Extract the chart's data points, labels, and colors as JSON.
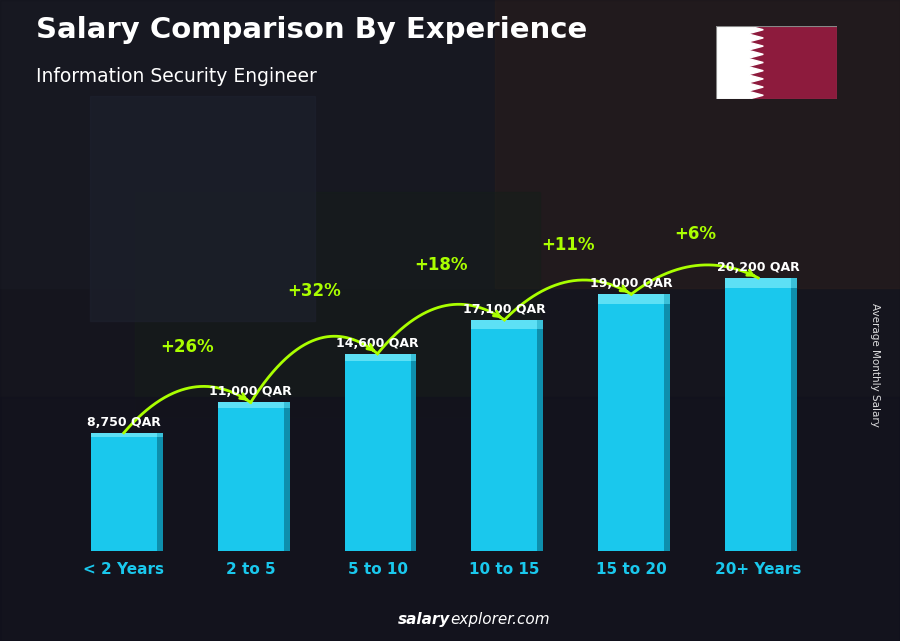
{
  "title": "Salary Comparison By Experience",
  "subtitle": "Information Security Engineer",
  "categories": [
    "< 2 Years",
    "2 to 5",
    "5 to 10",
    "10 to 15",
    "15 to 20",
    "20+ Years"
  ],
  "values": [
    8750,
    11000,
    14600,
    17100,
    19000,
    20200
  ],
  "value_labels": [
    "8,750 QAR",
    "11,000 QAR",
    "14,600 QAR",
    "17,100 QAR",
    "19,000 QAR",
    "20,200 QAR"
  ],
  "pct_labels": [
    "+26%",
    "+32%",
    "+18%",
    "+11%",
    "+6%"
  ],
  "bar_color_face": "#1ac8ed",
  "bar_color_side": "#0e8fad",
  "bar_color_top": "#5de0f5",
  "background_dark": "#1a1a2a",
  "title_color": "#ffffff",
  "subtitle_color": "#ffffff",
  "value_label_color": "#ffffff",
  "pct_color": "#aaff00",
  "xticklabel_color": "#1ac8ed",
  "ylabel": "Average Monthly Salary",
  "footer_normal": "explorer.com",
  "footer_bold": "salary",
  "ylim": [
    0,
    27000
  ],
  "bar_width": 0.52,
  "flag_maroon": "#8D1B3D",
  "flag_white": "#FFFFFF"
}
